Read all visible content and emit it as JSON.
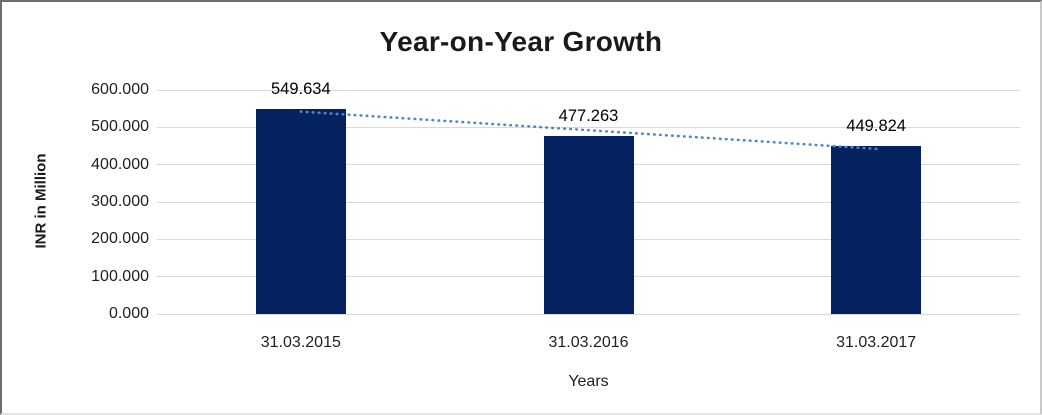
{
  "chart_data": {
    "type": "bar",
    "title": "Year-on-Year Growth",
    "categories": [
      "31.03.2015",
      "31.03.2016",
      "31.03.2017"
    ],
    "values": [
      549.634,
      477.263,
      449.824
    ],
    "data_labels": [
      "549.634",
      "477.263",
      "449.824"
    ],
    "xlabel": "Years",
    "ylabel": "INR in Million",
    "ylim": [
      0,
      600
    ],
    "ytick_labels": [
      "600.000",
      "500.000",
      "400.000",
      "300.000",
      "200.000",
      "100.000",
      "0.000"
    ],
    "grid": "horizontal",
    "legend": "none",
    "bar_color": "#042260",
    "gridline_color": "#d9d9d9",
    "trendline": {
      "type": "linear",
      "style": "dotted",
      "color": "#4e87c8"
    }
  }
}
